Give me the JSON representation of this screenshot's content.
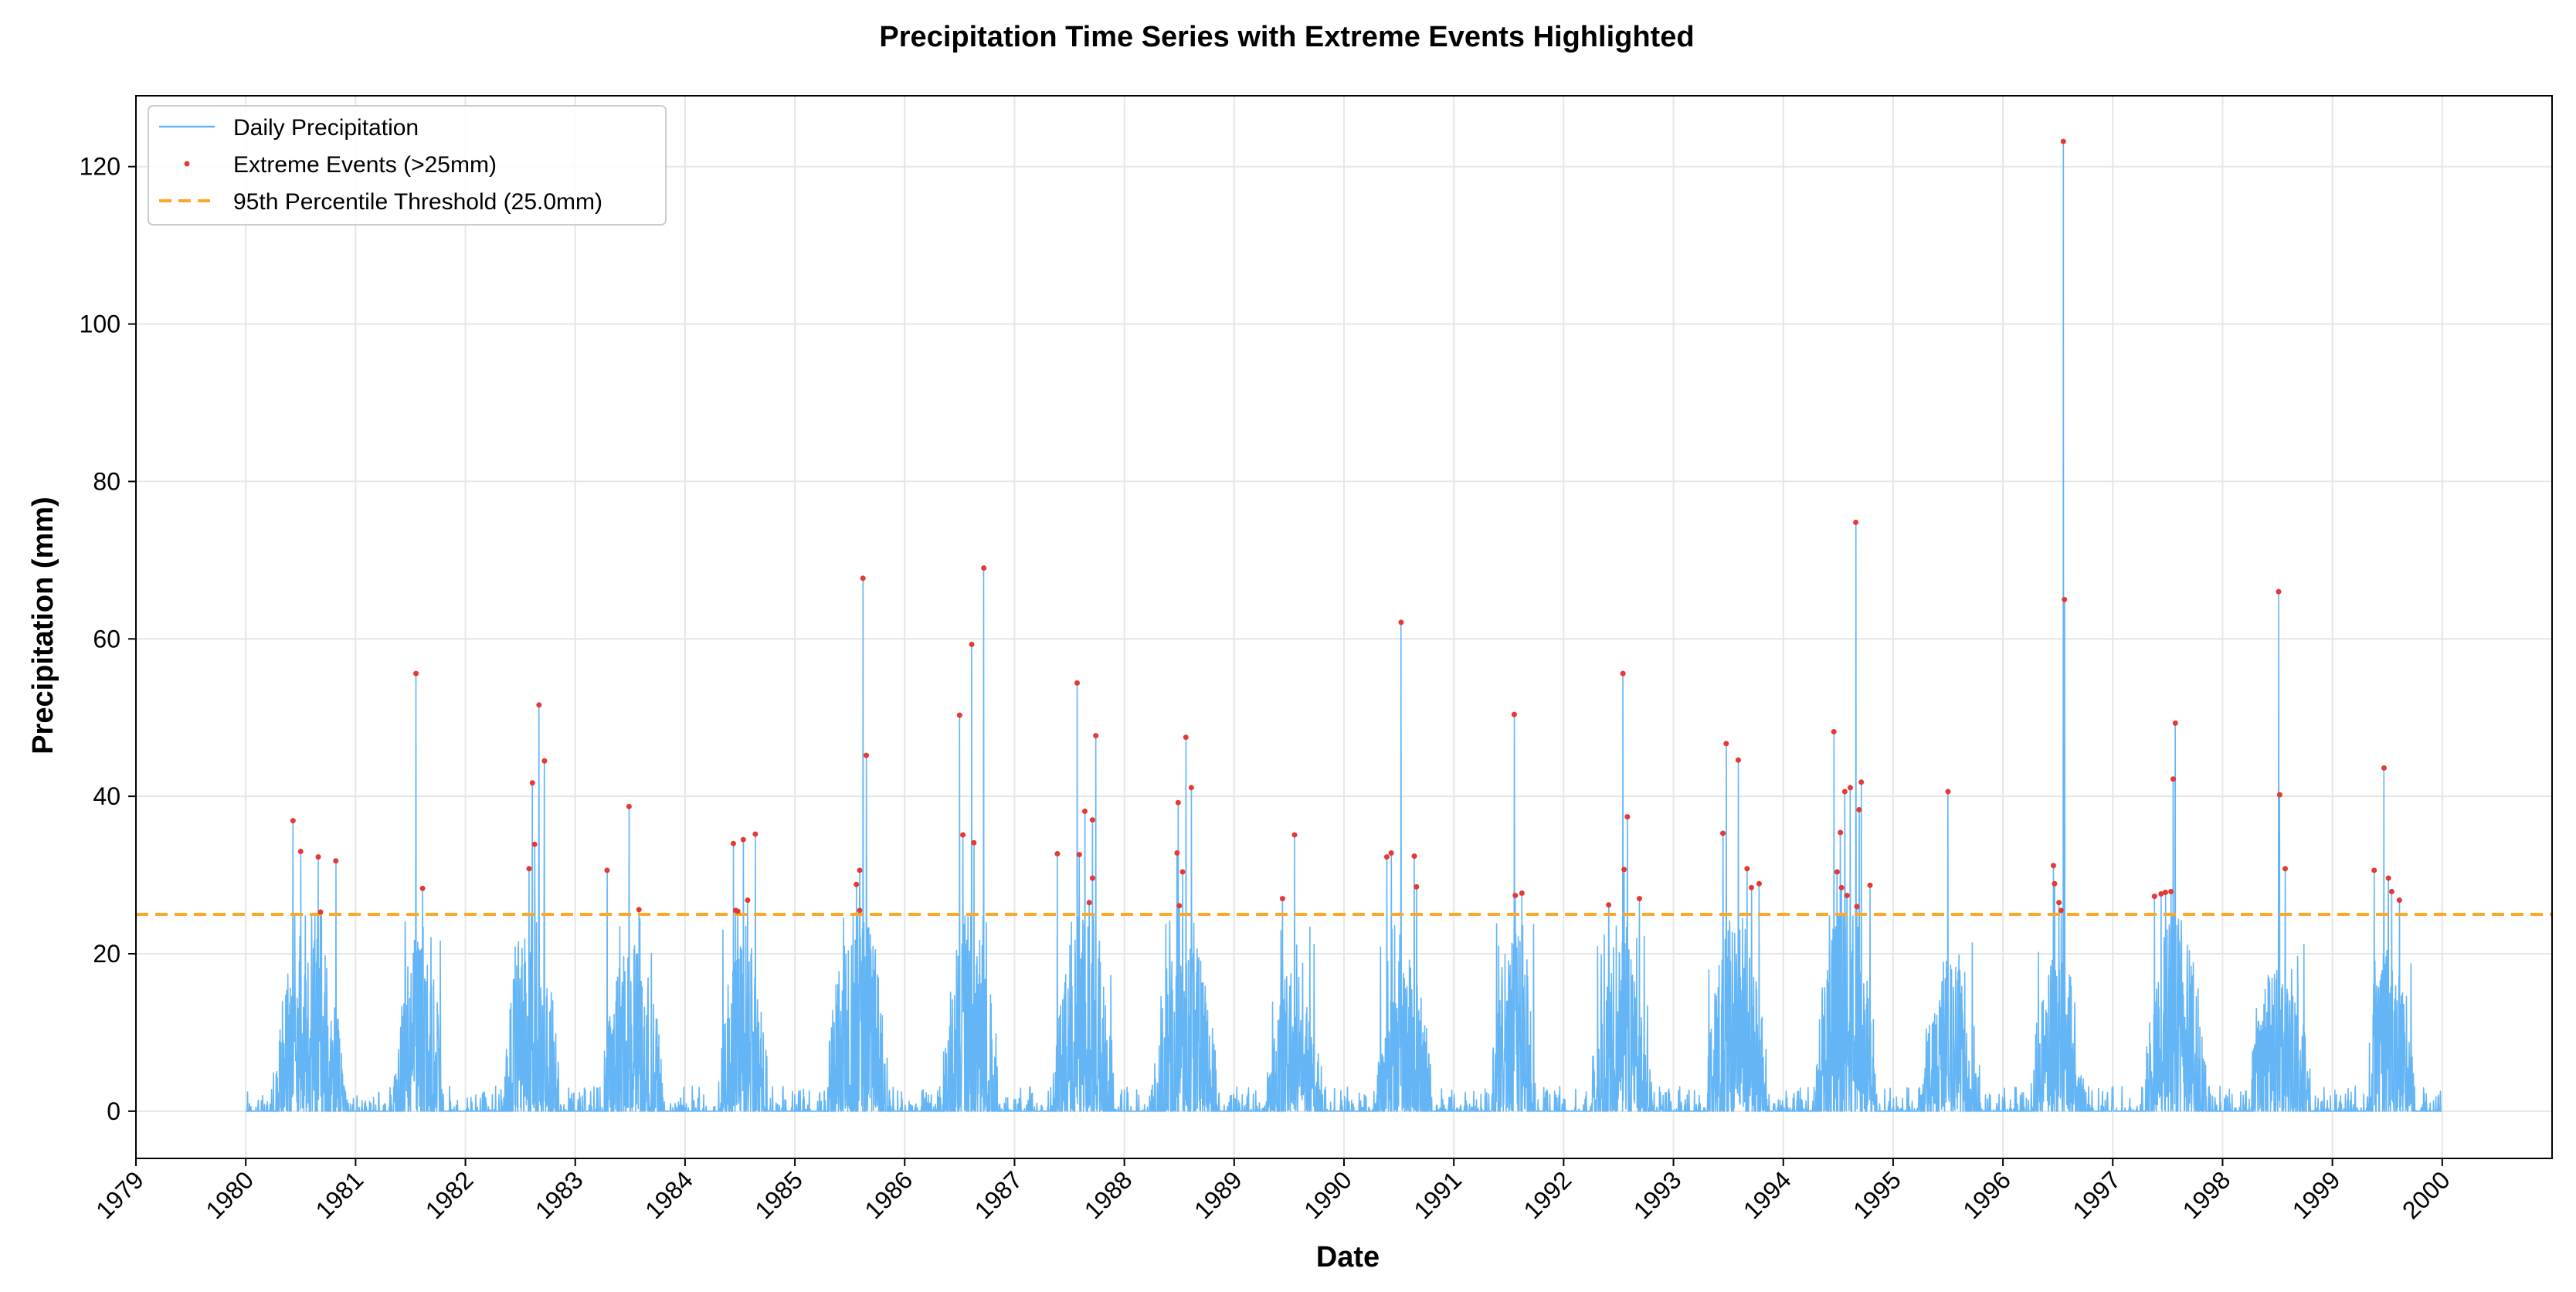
{
  "chart_data": {
    "type": "line",
    "title": "Precipitation Time Series with Extreme Events Highlighted",
    "xlabel": "Date",
    "ylabel": "Precipitation (mm)",
    "xlim": [
      "1979",
      "2001"
    ],
    "ylim": [
      -6,
      129
    ],
    "x_ticks": [
      "1979",
      "1980",
      "1981",
      "1982",
      "1983",
      "1984",
      "1985",
      "1986",
      "1987",
      "1988",
      "1989",
      "1990",
      "1991",
      "1992",
      "1993",
      "1994",
      "1995",
      "1996",
      "1997",
      "1998",
      "1999",
      "2000"
    ],
    "y_ticks": [
      0,
      20,
      40,
      60,
      80,
      100,
      120
    ],
    "grid": true,
    "legend_position": "top-left",
    "threshold": 25.0,
    "colors": {
      "precip": "#64b5f6",
      "extreme": "#e53935",
      "threshold": "#ffa726",
      "grid": "#e6e6e6",
      "axis": "#000000"
    },
    "series": [
      {
        "name": "Daily Precipitation",
        "note_x_units": "decimal year",
        "seasons": [
          {
            "start": 1980.25,
            "end": 1980.9,
            "typ": 14,
            "max": 30
          },
          {
            "start": 1981.35,
            "end": 1981.8,
            "typ": 14,
            "max": 25
          },
          {
            "start": 1982.35,
            "end": 1982.85,
            "typ": 15,
            "max": 30
          },
          {
            "start": 1983.25,
            "end": 1983.8,
            "typ": 13,
            "max": 25
          },
          {
            "start": 1984.3,
            "end": 1984.75,
            "typ": 13,
            "max": 25
          },
          {
            "start": 1985.3,
            "end": 1985.85,
            "typ": 16,
            "max": 26
          },
          {
            "start": 1986.35,
            "end": 1986.85,
            "typ": 15,
            "max": 28
          },
          {
            "start": 1987.35,
            "end": 1987.9,
            "typ": 15,
            "max": 28
          },
          {
            "start": 1988.25,
            "end": 1988.85,
            "typ": 14,
            "max": 25
          },
          {
            "start": 1989.3,
            "end": 1989.8,
            "typ": 11,
            "max": 24
          },
          {
            "start": 1990.3,
            "end": 1990.8,
            "typ": 12,
            "max": 24
          },
          {
            "start": 1991.35,
            "end": 1991.75,
            "typ": 14,
            "max": 24
          },
          {
            "start": 1992.25,
            "end": 1992.8,
            "typ": 13,
            "max": 26
          },
          {
            "start": 1993.3,
            "end": 1993.85,
            "typ": 15,
            "max": 26
          },
          {
            "start": 1994.3,
            "end": 1994.85,
            "typ": 17,
            "max": 28
          },
          {
            "start": 1995.25,
            "end": 1995.8,
            "typ": 12,
            "max": 22
          },
          {
            "start": 1996.25,
            "end": 1996.75,
            "typ": 12,
            "max": 24
          },
          {
            "start": 1997.3,
            "end": 1997.85,
            "typ": 15,
            "max": 26
          },
          {
            "start": 1998.25,
            "end": 1998.8,
            "typ": 12,
            "max": 22
          },
          {
            "start": 1999.3,
            "end": 1999.75,
            "typ": 13,
            "max": 24
          }
        ]
      },
      {
        "name": "Extreme Events (>25mm)",
        "points": [
          [
            1980.43,
            36.9
          ],
          [
            1980.5,
            33.0
          ],
          [
            1980.66,
            32.3
          ],
          [
            1980.68,
            25.3
          ],
          [
            1980.82,
            31.8
          ],
          [
            1981.55,
            55.6
          ],
          [
            1981.61,
            28.3
          ],
          [
            1982.58,
            30.8
          ],
          [
            1982.61,
            41.7
          ],
          [
            1982.63,
            33.9
          ],
          [
            1982.67,
            51.6
          ],
          [
            1982.72,
            44.5
          ],
          [
            1983.29,
            30.6
          ],
          [
            1983.49,
            38.7
          ],
          [
            1983.58,
            25.6
          ],
          [
            1984.44,
            34.0
          ],
          [
            1984.46,
            25.5
          ],
          [
            1984.48,
            25.4
          ],
          [
            1984.53,
            34.5
          ],
          [
            1984.57,
            26.8
          ],
          [
            1984.64,
            35.2
          ],
          [
            1985.56,
            28.8
          ],
          [
            1985.59,
            30.6
          ],
          [
            1985.59,
            25.5
          ],
          [
            1985.62,
            67.7
          ],
          [
            1985.65,
            45.2
          ],
          [
            1986.5,
            50.3
          ],
          [
            1986.53,
            35.1
          ],
          [
            1986.61,
            59.3
          ],
          [
            1986.63,
            34.1
          ],
          [
            1986.72,
            69.0
          ],
          [
            1987.39,
            32.7
          ],
          [
            1987.57,
            54.4
          ],
          [
            1987.59,
            32.6
          ],
          [
            1987.64,
            38.1
          ],
          [
            1987.68,
            26.5
          ],
          [
            1987.71,
            37.0
          ],
          [
            1987.71,
            29.6
          ],
          [
            1987.74,
            47.7
          ],
          [
            1988.48,
            32.8
          ],
          [
            1988.49,
            39.2
          ],
          [
            1988.5,
            26.1
          ],
          [
            1988.53,
            30.4
          ],
          [
            1988.56,
            47.5
          ],
          [
            1988.61,
            41.1
          ],
          [
            1989.44,
            27.0
          ],
          [
            1989.55,
            35.1
          ],
          [
            1990.39,
            32.3
          ],
          [
            1990.43,
            32.8
          ],
          [
            1990.52,
            62.1
          ],
          [
            1990.64,
            32.4
          ],
          [
            1990.66,
            28.5
          ],
          [
            1991.55,
            50.4
          ],
          [
            1991.56,
            27.4
          ],
          [
            1991.62,
            27.7
          ],
          [
            1992.41,
            26.2
          ],
          [
            1992.54,
            55.6
          ],
          [
            1992.55,
            30.7
          ],
          [
            1992.58,
            37.4
          ],
          [
            1992.69,
            27.0
          ],
          [
            1993.45,
            35.3
          ],
          [
            1993.48,
            46.7
          ],
          [
            1993.59,
            44.6
          ],
          [
            1993.67,
            30.8
          ],
          [
            1993.71,
            28.4
          ],
          [
            1993.78,
            28.9
          ],
          [
            1994.46,
            48.2
          ],
          [
            1994.49,
            30.4
          ],
          [
            1994.52,
            35.4
          ],
          [
            1994.53,
            28.4
          ],
          [
            1994.56,
            40.6
          ],
          [
            1994.58,
            27.4
          ],
          [
            1994.61,
            41.1
          ],
          [
            1994.66,
            74.8
          ],
          [
            1994.67,
            26.0
          ],
          [
            1994.69,
            38.3
          ],
          [
            1994.71,
            41.8
          ],
          [
            1994.79,
            28.7
          ],
          [
            1995.5,
            40.6
          ],
          [
            1996.46,
            31.2
          ],
          [
            1996.47,
            28.9
          ],
          [
            1996.51,
            26.5
          ],
          [
            1996.53,
            25.5
          ],
          [
            1996.55,
            123.2
          ],
          [
            1996.56,
            65.0
          ],
          [
            1997.38,
            27.3
          ],
          [
            1997.44,
            27.6
          ],
          [
            1997.48,
            27.8
          ],
          [
            1997.53,
            27.9
          ],
          [
            1997.55,
            42.2
          ],
          [
            1997.57,
            49.3
          ],
          [
            1998.51,
            66.0
          ],
          [
            1998.52,
            40.2
          ],
          [
            1998.57,
            30.8
          ],
          [
            1999.38,
            30.6
          ],
          [
            1999.47,
            43.6
          ],
          [
            1999.51,
            29.6
          ],
          [
            1999.54,
            27.9
          ],
          [
            1999.61,
            26.8
          ]
        ]
      },
      {
        "name": "95th Percentile Threshold (25.0mm)",
        "y": 25.0
      }
    ]
  }
}
